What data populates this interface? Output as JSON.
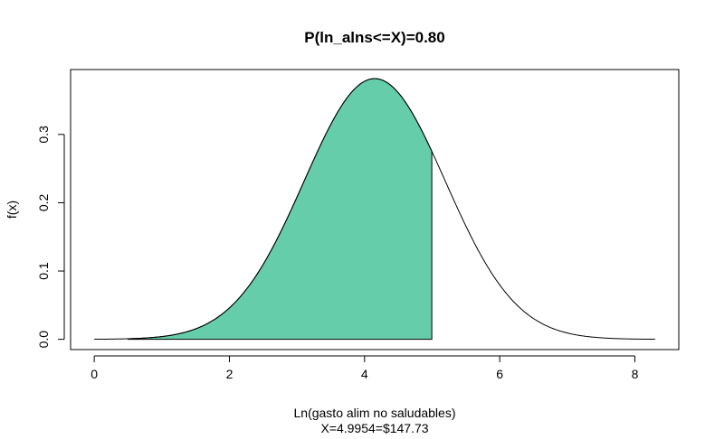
{
  "chart_data": {
    "type": "area",
    "title": "P(ln_alns<=X)=0.80",
    "xlabel": "Ln(gasto alim no saludables)",
    "xlabel2": "X=4.9954=$147.73",
    "ylabel": "f(x)",
    "distribution": {
      "name": "normal",
      "mean": 4.15,
      "sd": 1.045
    },
    "curve_range": [
      0,
      8.3
    ],
    "shade_range": [
      0.5,
      4.9954
    ],
    "shade_color": "#66CDAA",
    "xlim": [
      -0.35,
      8.65
    ],
    "ylim": [
      -0.015,
      0.395
    ],
    "x_ticks": [
      0,
      2,
      4,
      6,
      8
    ],
    "y_ticks": [
      0.0,
      0.1,
      0.2,
      0.3
    ],
    "x_tick_labels": [
      "0",
      "2",
      "4",
      "6",
      "8"
    ],
    "y_tick_labels": [
      "0.0",
      "0.1",
      "0.2",
      "0.3"
    ],
    "grid": false,
    "legend": "none"
  }
}
